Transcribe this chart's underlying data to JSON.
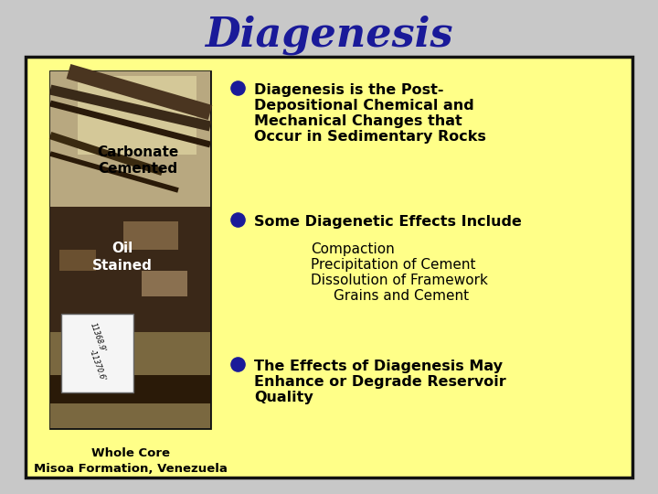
{
  "title": "Diagenesis",
  "title_color": "#1a1a99",
  "title_fontsize": 32,
  "title_fontweight": "bold",
  "bg_color": "#c8c8c8",
  "panel_color": "#ffff88",
  "panel_border_color": "#111111",
  "bullet_color": "#1a1a99",
  "bullet1_line1": "Diagenesis is the Post-",
  "bullet1_line2": "Depositional Chemical and",
  "bullet1_line3": "Mechanical Changes that",
  "bullet1_line4": "Occur in Sedimentary Rocks",
  "bullet2": "Some Diagenetic Effects Include",
  "sub1": "Compaction",
  "sub2": "Precipitation of Cement",
  "sub3": "Dissolution of Framework",
  "sub4": "    Grains and Cement",
  "bullet3_line1": "The Effects of Diagenesis May",
  "bullet3_line2": "Enhance or Degrade Reservoir",
  "bullet3_line3": "Quality",
  "label_carbonate": "Carbonate\nCemented",
  "label_oil": "Oil\nStained",
  "label_whole_core": "Whole Core\nMisoa Formation, Venezuela",
  "text_color": "#000000",
  "text_fontsize": 11.5,
  "sub_fontsize": 11,
  "label_fontsize": 11
}
